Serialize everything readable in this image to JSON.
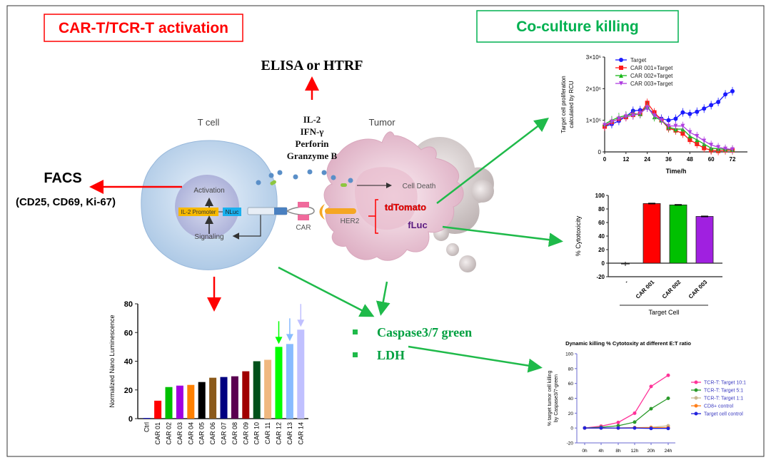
{
  "headers": {
    "activation": "CAR-T/TCR-T activation",
    "coculture": "Co-culture killing"
  },
  "colors": {
    "activation": "#ff0000",
    "coculture": "#00b050"
  },
  "diagram": {
    "elisa": "ELISA or HTRF",
    "cytokines": [
      "IL-2",
      "IFN-γ",
      "Perforin",
      "Granzyme B"
    ],
    "t_cell": "T cell",
    "tumor": "Tumor",
    "facs": "FACS",
    "facs_markers": "(CD25, CD69, Ki-67)",
    "activation": "Activation",
    "signaling": "Signaling",
    "il2_promoter": "IL-2 Promoter",
    "nluc": "NLuc",
    "car": "CAR",
    "her2": "HER2",
    "cell_death": "Cell Death",
    "tdtomato": "tdTomato",
    "fluc": "fLuc",
    "readouts": [
      "Caspase3/7 green",
      "LDH"
    ]
  },
  "chart_data": [
    {
      "type": "bar",
      "ylabel": "Normalized Nano Luminescence",
      "ylim": [
        0,
        80
      ],
      "yticks": [
        0,
        20,
        40,
        60,
        80
      ],
      "categories": [
        "Ctrl",
        "CAR 01",
        "CAR 02",
        "CAR 03",
        "CAR 04",
        "CAR 05",
        "CAR 06",
        "CAR 07",
        "CAR 08",
        "CAR 09",
        "CAR 10",
        "CAR 11",
        "CAR 12",
        "CAR 13",
        "CAR 14"
      ],
      "values": [
        0.5,
        12.5,
        22,
        23,
        23.5,
        25.5,
        28.5,
        29,
        29.5,
        33,
        40,
        41,
        50,
        52,
        62
      ],
      "colors": [
        "#1f1fd0",
        "#ff0000",
        "#00c000",
        "#a000e0",
        "#ff8000",
        "#000000",
        "#8b5a1a",
        "#000080",
        "#5a0050",
        "#a00000",
        "#00501a",
        "#f0b880",
        "#00ff00",
        "#88bbff",
        "#c0c0ff"
      ],
      "highlighted": [
        "CAR 12",
        "CAR 13",
        "CAR 14"
      ]
    },
    {
      "type": "line",
      "xlabel": "Time/h",
      "ylabel": "Target cell proliferation calculated by RCU",
      "xlim": [
        0,
        80
      ],
      "ylim": [
        0,
        3000000
      ],
      "xticks": [
        0,
        12,
        24,
        36,
        48,
        60,
        72
      ],
      "yticks": [
        "0",
        "1×10⁶",
        "2×10⁶",
        "3×10⁶"
      ],
      "legend": "top-left",
      "x": [
        0,
        4,
        8,
        12,
        16,
        20,
        24,
        28,
        32,
        36,
        40,
        44,
        48,
        52,
        56,
        60,
        64,
        68,
        72
      ],
      "series": [
        {
          "name": "Target",
          "color": "#1a1aff",
          "marker": "circle",
          "values": [
            800000,
            880000,
            980000,
            1120000,
            1300000,
            1320000,
            1400000,
            1200000,
            1050000,
            1000000,
            1050000,
            1250000,
            1200000,
            1270000,
            1370000,
            1480000,
            1580000,
            1820000,
            1920000
          ]
        },
        {
          "name": "CAR 001+Target",
          "color": "#ff1a1a",
          "marker": "square",
          "values": [
            800000,
            950000,
            1050000,
            1100000,
            1170000,
            1200000,
            1550000,
            1250000,
            1000000,
            750000,
            680000,
            580000,
            380000,
            250000,
            120000,
            50000,
            30000,
            50000,
            50000
          ]
        },
        {
          "name": "CAR 002+Target",
          "color": "#1ab81a",
          "marker": "triangle-up",
          "values": [
            880000,
            1000000,
            1100000,
            1150000,
            1200000,
            1200000,
            1450000,
            1100000,
            1000000,
            780000,
            720000,
            720000,
            500000,
            380000,
            250000,
            120000,
            100000,
            80000,
            70000
          ]
        },
        {
          "name": "CAR 003+Target",
          "color": "#b040e0",
          "marker": "triangle-down",
          "values": [
            850000,
            950000,
            1050000,
            1120000,
            1150000,
            1220000,
            1400000,
            1150000,
            1000000,
            820000,
            820000,
            820000,
            620000,
            500000,
            350000,
            220000,
            150000,
            100000,
            80000
          ]
        }
      ]
    },
    {
      "type": "bar",
      "ylabel": "% Cytotoxicity",
      "xlabel": "Target Cell",
      "ylim": [
        -20,
        100
      ],
      "yticks": [
        -20,
        0,
        20,
        40,
        60,
        80,
        100
      ],
      "categories": [
        "-",
        "CAR 001",
        "CAR 002",
        "CAR 003"
      ],
      "values": [
        -1,
        88,
        86,
        69
      ],
      "colors": [
        "#ffffff",
        "#ff0000",
        "#00c000",
        "#a020e0"
      ]
    },
    {
      "type": "line",
      "title": "Dynamic killing % Cytotoxity at different E:T ratio",
      "ylabel": "% target tumor cell killing by Caspase3/7-green",
      "ylim": [
        -20,
        100
      ],
      "yticks": [
        -20,
        0,
        20,
        40,
        60,
        80,
        100
      ],
      "categories": [
        "0h",
        "4h",
        "8h",
        "12h",
        "20h",
        "24h"
      ],
      "legend": "right",
      "series": [
        {
          "name": "TCR-T: Target 10:1",
          "color": "#ff3399",
          "values": [
            0,
            2.5,
            7.5,
            20,
            56,
            71
          ]
        },
        {
          "name": "TCR-T: Target 5:1",
          "color": "#2a9a2a",
          "values": [
            0,
            1,
            3,
            8,
            26,
            40
          ]
        },
        {
          "name": "TCR-T: Target 1:1",
          "color": "#c8b890",
          "values": [
            0,
            0,
            0,
            0.5,
            1,
            3
          ]
        },
        {
          "name": "CD8+ control",
          "color": "#ff7f1a",
          "values": [
            0,
            0,
            0,
            0.5,
            0.5,
            0.5
          ]
        },
        {
          "name": "Target cell control",
          "color": "#2222dd",
          "values": [
            0,
            0,
            0,
            0,
            -0.5,
            -0.5
          ]
        }
      ]
    }
  ]
}
